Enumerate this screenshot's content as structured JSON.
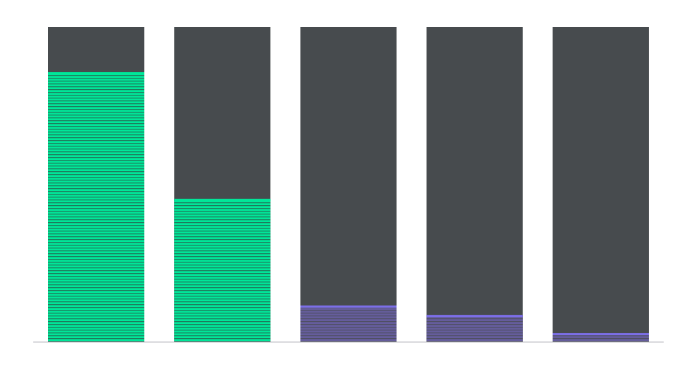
{
  "chart_data": {
    "type": "bar",
    "stacked": true,
    "categories": [
      "",
      "",
      "",
      "",
      ""
    ],
    "values": [
      85.6,
      45.4,
      11.5,
      8.5,
      2.7
    ],
    "ylim": [
      0,
      100
    ],
    "grid": false,
    "legend": "none",
    "colors": {
      "background_bar": "#474b4e",
      "series_green": "#00e699",
      "series_green_stripe": "#1f7a5c",
      "series_purple": "#7c6fe8",
      "series_purple_fill": "#625b94",
      "axis": "#b0b0b8"
    },
    "bar_colors": [
      "green",
      "green",
      "purple",
      "purple",
      "purple"
    ]
  }
}
